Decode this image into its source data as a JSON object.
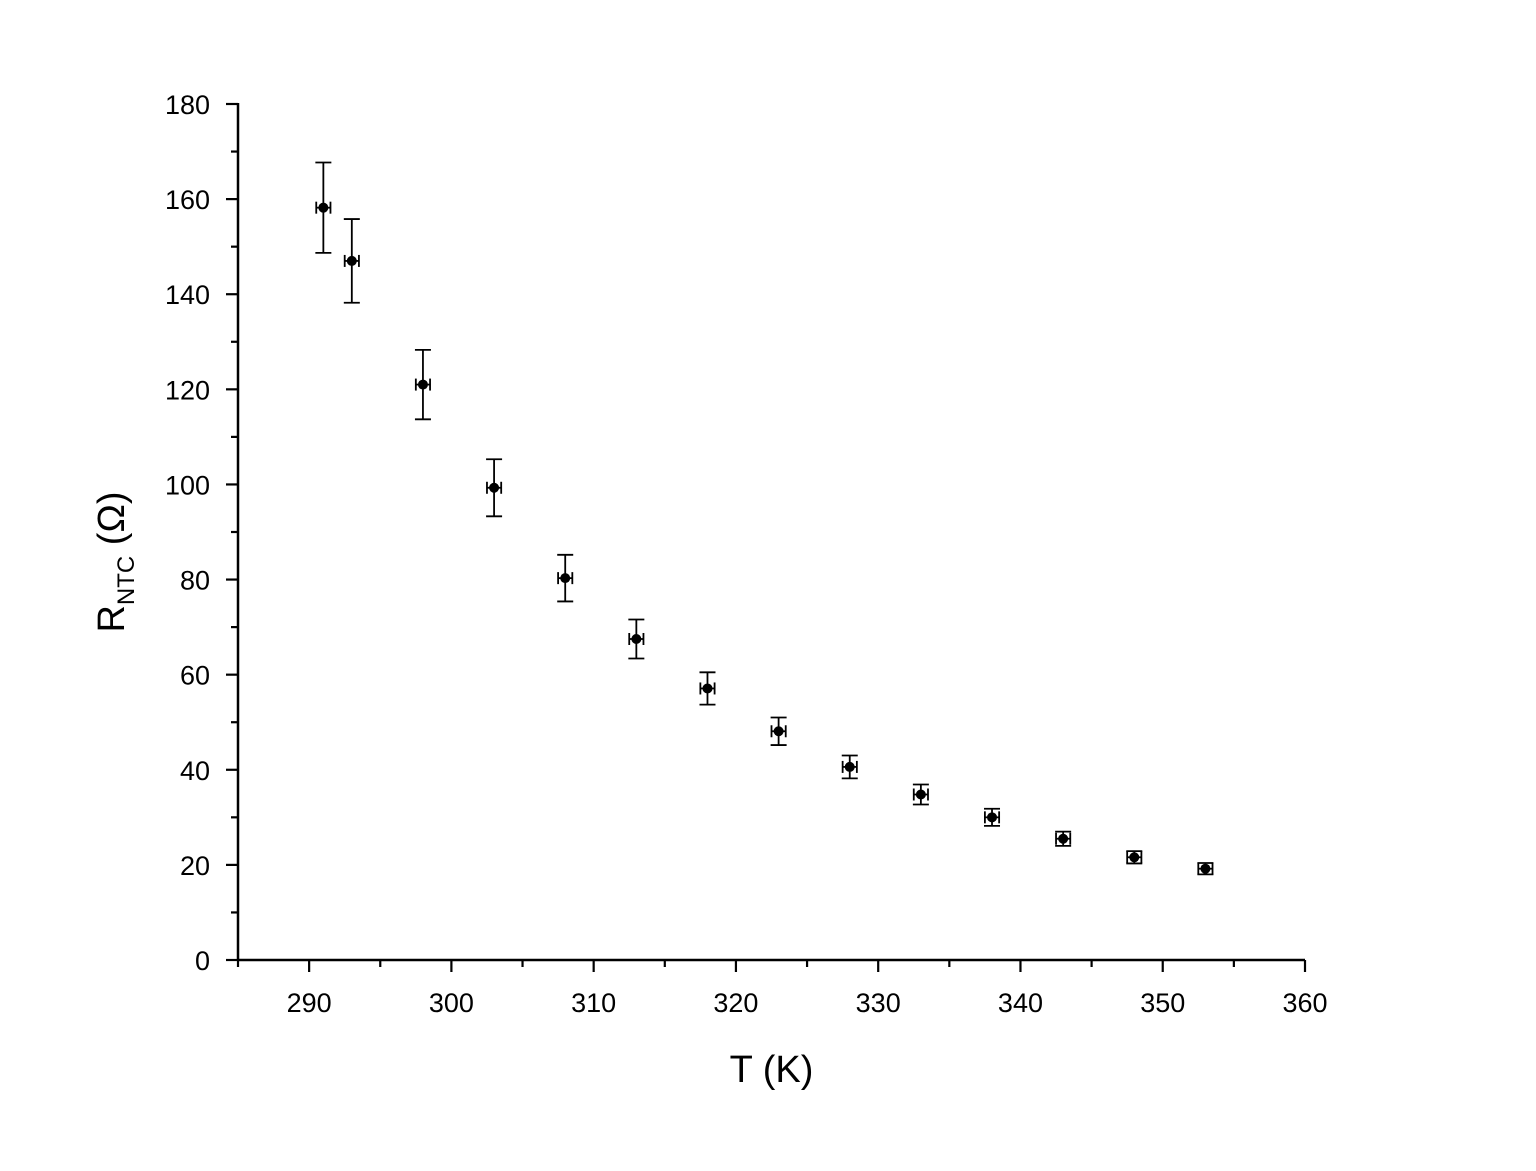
{
  "chart_data": {
    "type": "scatter",
    "title": "",
    "xlabel": "T (K)",
    "ylabel_main": "R",
    "ylabel_sub": "NTC",
    "ylabel_unit": "(Ω)",
    "xlim": [
      285,
      360
    ],
    "ylim": [
      0,
      180
    ],
    "xticks": [
      290,
      300,
      310,
      320,
      330,
      340,
      350,
      360
    ],
    "yticks": [
      0,
      20,
      40,
      60,
      80,
      100,
      120,
      140,
      160,
      180
    ],
    "grid": false,
    "legend": "none",
    "marker_color": "#000000",
    "series": [
      {
        "points": [
          {
            "x": 291,
            "y": 158.2,
            "xerr": 0.5,
            "yerr": 9.5
          },
          {
            "x": 293,
            "y": 147.0,
            "xerr": 0.5,
            "yerr": 8.8
          },
          {
            "x": 298,
            "y": 121.0,
            "xerr": 0.5,
            "yerr": 7.3
          },
          {
            "x": 303,
            "y": 99.3,
            "xerr": 0.5,
            "yerr": 6.0
          },
          {
            "x": 308,
            "y": 80.3,
            "xerr": 0.5,
            "yerr": 4.9
          },
          {
            "x": 313,
            "y": 67.5,
            "xerr": 0.5,
            "yerr": 4.1
          },
          {
            "x": 318,
            "y": 57.1,
            "xerr": 0.5,
            "yerr": 3.4
          },
          {
            "x": 323,
            "y": 48.1,
            "xerr": 0.5,
            "yerr": 2.9
          },
          {
            "x": 328,
            "y": 40.6,
            "xerr": 0.5,
            "yerr": 2.4
          },
          {
            "x": 333,
            "y": 34.8,
            "xerr": 0.5,
            "yerr": 2.1
          },
          {
            "x": 338,
            "y": 30.0,
            "xerr": 0.5,
            "yerr": 1.8
          },
          {
            "x": 343,
            "y": 25.5,
            "xerr": 0.5,
            "yerr": 1.5
          },
          {
            "x": 348,
            "y": 21.6,
            "xerr": 0.5,
            "yerr": 1.3
          },
          {
            "x": 353,
            "y": 19.2,
            "xerr": 0.5,
            "yerr": 1.2
          }
        ]
      }
    ]
  }
}
